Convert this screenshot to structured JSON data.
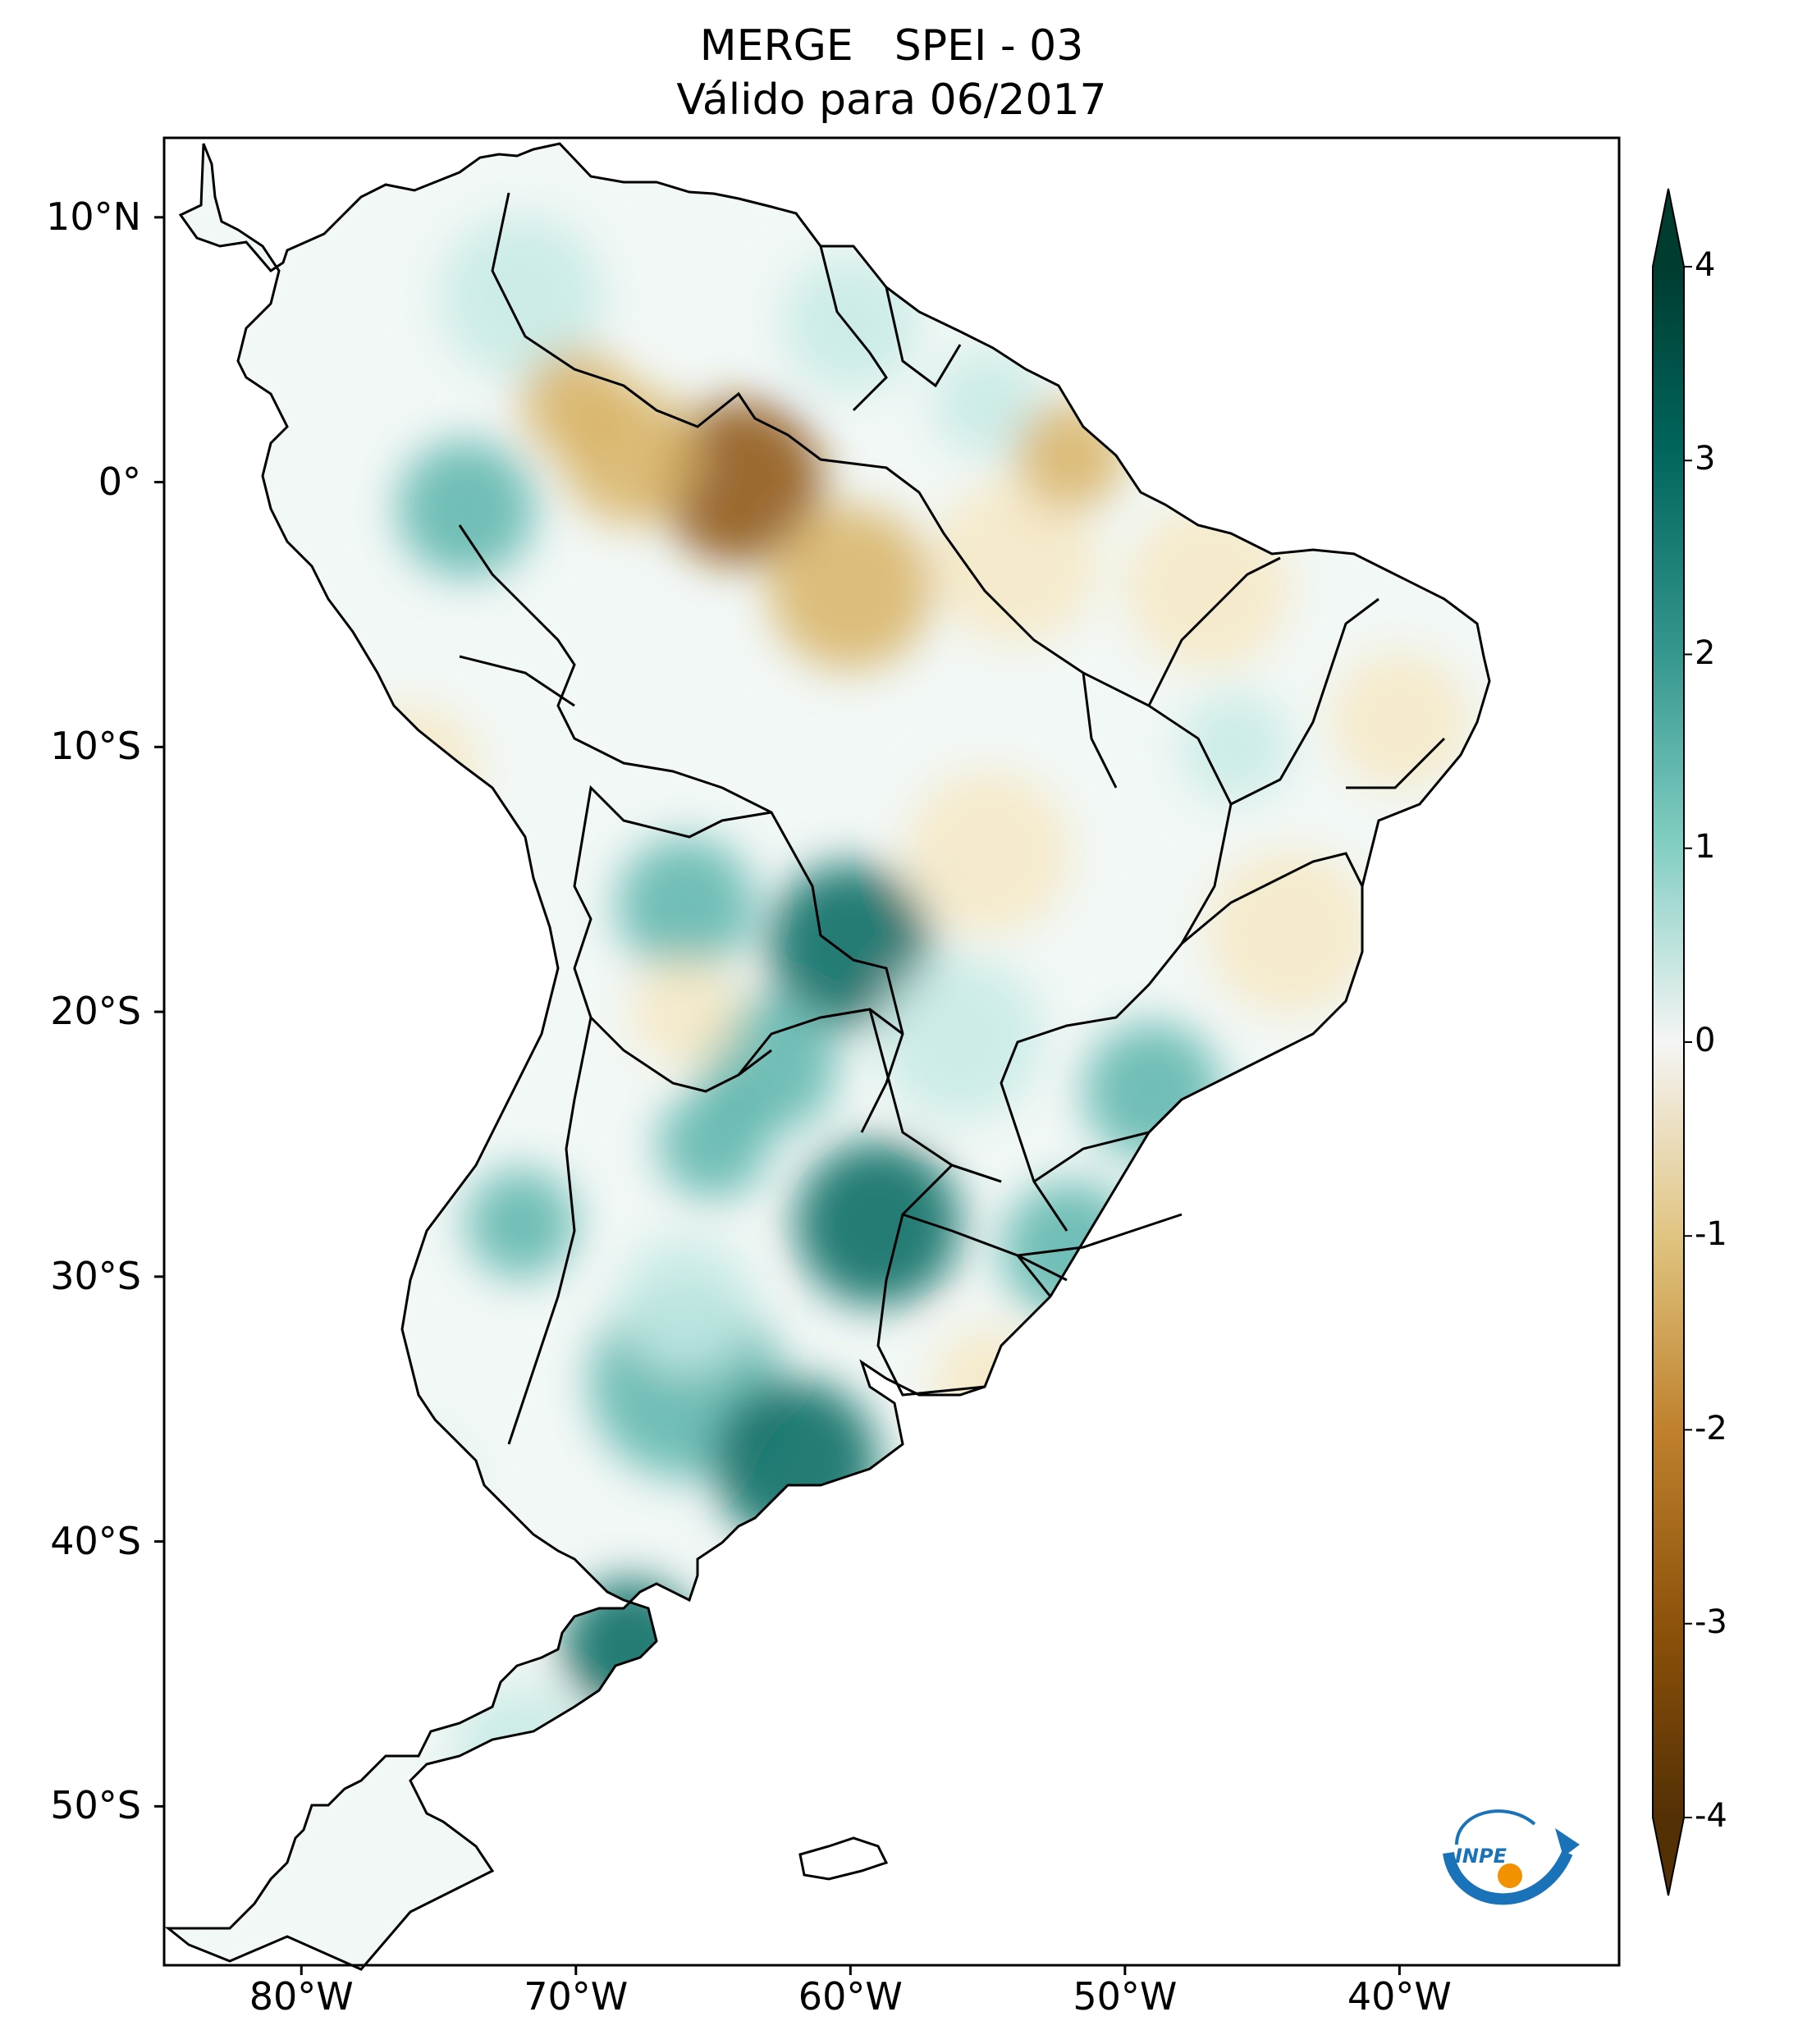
{
  "title": {
    "product": "MERGE",
    "index": "SPEI - 03",
    "subtitle": "Válido para 06/2017"
  },
  "map": {
    "region": "South America",
    "lon_range": [
      -85,
      -32
    ],
    "lat_range": [
      -56,
      13
    ],
    "lat_ticks": [
      {
        "value": 10,
        "label": "10°N"
      },
      {
        "value": 0,
        "label": "0°"
      },
      {
        "value": -10,
        "label": "10°S"
      },
      {
        "value": -20,
        "label": "20°S"
      },
      {
        "value": -30,
        "label": "30°S"
      },
      {
        "value": -40,
        "label": "40°S"
      },
      {
        "value": -50,
        "label": "50°S"
      }
    ],
    "lon_ticks": [
      {
        "value": -80,
        "label": "80°W"
      },
      {
        "value": -70,
        "label": "70°W"
      },
      {
        "value": -60,
        "label": "60°W"
      },
      {
        "value": -50,
        "label": "50°W"
      },
      {
        "value": -40,
        "label": "40°W"
      }
    ],
    "colors": {
      "wet_dark": "#01665e",
      "wet_mid": "#5ab4ac",
      "wet_light": "#c7eae5",
      "neutral": "#f5f5f5",
      "dry_light": "#f6e8c3",
      "dry_mid": "#d8b365",
      "dry_dark": "#8c510a",
      "border": "#000000"
    }
  },
  "colorbar": {
    "min": -4,
    "max": 4,
    "ticks": [
      "4",
      "3",
      "2",
      "1",
      "0",
      "-1",
      "-2",
      "-3",
      "-4"
    ],
    "extend": "both",
    "colormap": "BrBG"
  },
  "logo": {
    "text": "INPE",
    "colors": {
      "blue": "#1a72b8",
      "orange": "#f39200"
    }
  }
}
